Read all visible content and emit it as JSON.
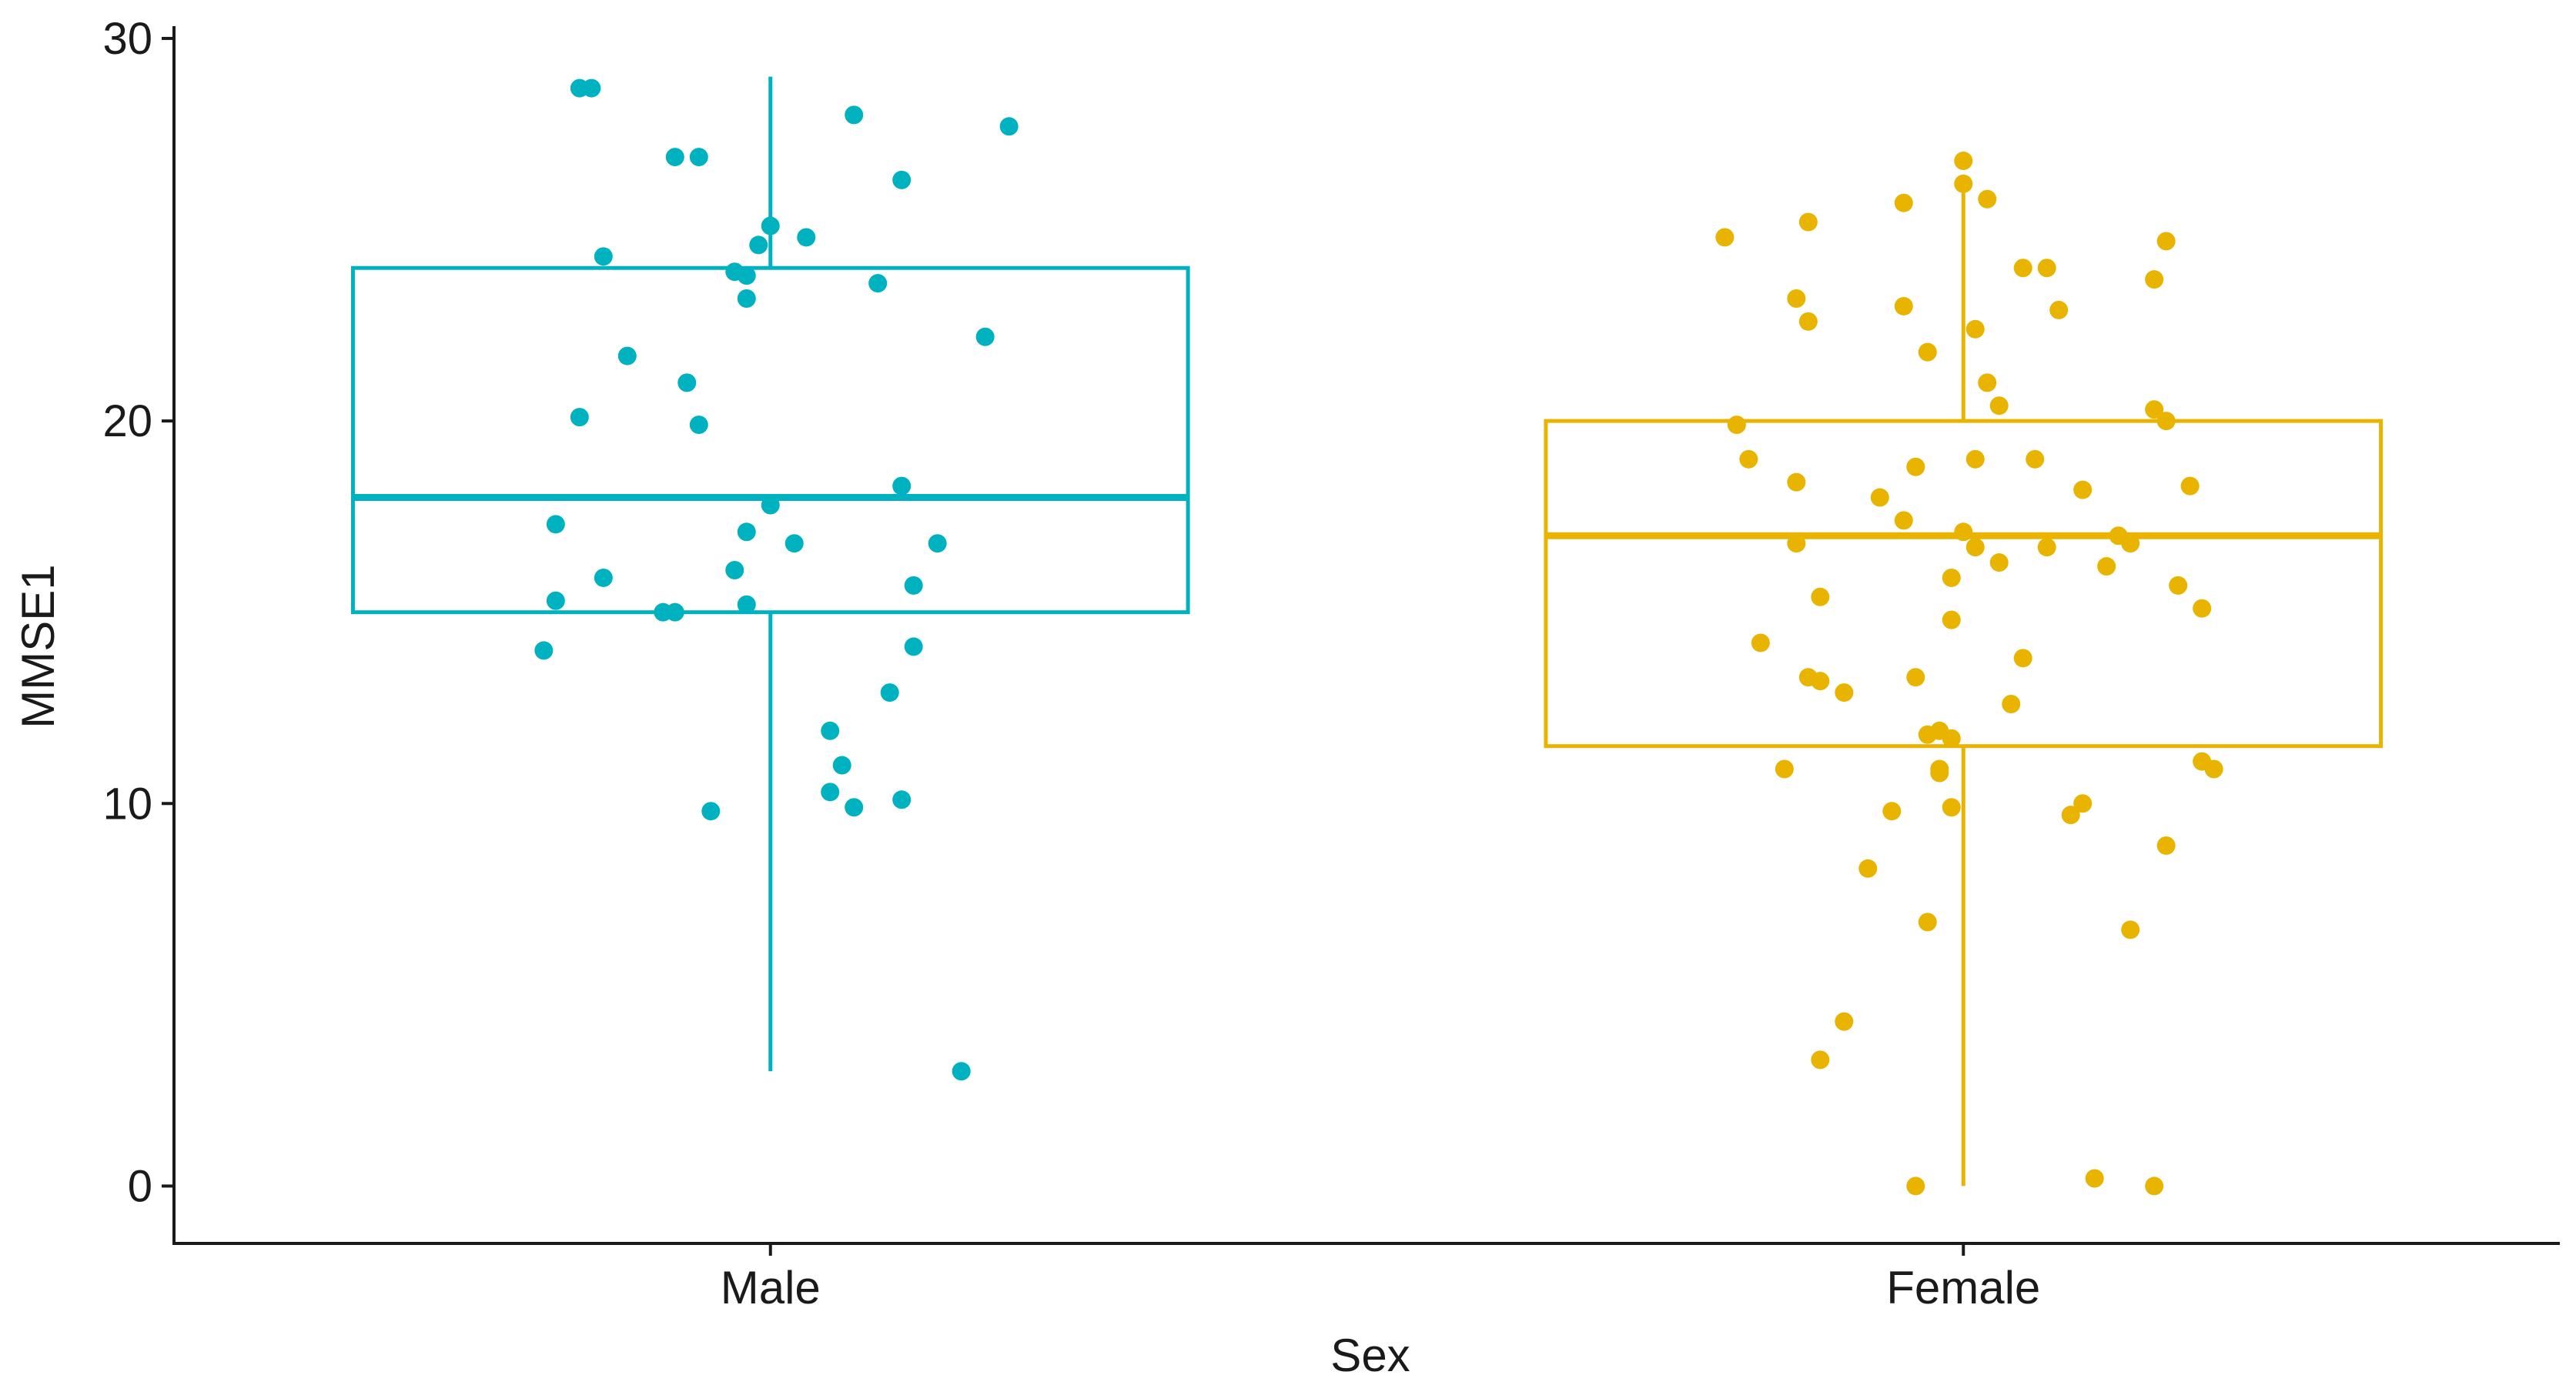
{
  "chart_data": {
    "type": "boxplot",
    "xlabel": "Sex",
    "ylabel": "MMSE1",
    "categories": [
      "Male",
      "Female"
    ],
    "ylim": [
      -1.5,
      30.2
    ],
    "yticks": [
      0,
      10,
      20,
      30
    ],
    "yticklabels": [
      "0",
      "10",
      "20",
      "30"
    ],
    "grid": false,
    "legend": "none",
    "groups": [
      {
        "category": "Male",
        "color": "#00B2C0",
        "box": {
          "lower_whisker": 3,
          "q1": 15,
          "median": 18,
          "q3": 24,
          "upper_whisker": 29
        },
        "points": [
          {
            "x": -0.16,
            "y": 28.7
          },
          {
            "x": -0.15,
            "y": 28.7
          },
          {
            "x": 0.07,
            "y": 28.0
          },
          {
            "x": 0.2,
            "y": 27.7
          },
          {
            "x": -0.08,
            "y": 26.9
          },
          {
            "x": -0.06,
            "y": 26.9
          },
          {
            "x": 0.11,
            "y": 26.3
          },
          {
            "x": 0.0,
            "y": 25.1
          },
          {
            "x": 0.03,
            "y": 24.8
          },
          {
            "x": -0.01,
            "y": 24.6
          },
          {
            "x": -0.14,
            "y": 24.3
          },
          {
            "x": -0.03,
            "y": 23.9
          },
          {
            "x": -0.02,
            "y": 23.8
          },
          {
            "x": 0.09,
            "y": 23.6
          },
          {
            "x": -0.02,
            "y": 23.2
          },
          {
            "x": 0.18,
            "y": 22.2
          },
          {
            "x": -0.12,
            "y": 21.7
          },
          {
            "x": -0.07,
            "y": 21.0
          },
          {
            "x": -0.16,
            "y": 20.1
          },
          {
            "x": -0.06,
            "y": 19.9
          },
          {
            "x": 0.11,
            "y": 18.3
          },
          {
            "x": 0.0,
            "y": 17.8
          },
          {
            "x": -0.18,
            "y": 17.3
          },
          {
            "x": -0.02,
            "y": 17.1
          },
          {
            "x": 0.02,
            "y": 16.8
          },
          {
            "x": 0.14,
            "y": 16.8
          },
          {
            "x": -0.03,
            "y": 16.1
          },
          {
            "x": -0.14,
            "y": 15.9
          },
          {
            "x": 0.12,
            "y": 15.7
          },
          {
            "x": -0.18,
            "y": 15.3
          },
          {
            "x": -0.02,
            "y": 15.2
          },
          {
            "x": -0.08,
            "y": 15.0
          },
          {
            "x": -0.09,
            "y": 15.0
          },
          {
            "x": 0.12,
            "y": 14.1
          },
          {
            "x": -0.19,
            "y": 14.0
          },
          {
            "x": 0.1,
            "y": 12.9
          },
          {
            "x": 0.05,
            "y": 11.9
          },
          {
            "x": 0.06,
            "y": 11.0
          },
          {
            "x": 0.05,
            "y": 10.3
          },
          {
            "x": 0.11,
            "y": 10.1
          },
          {
            "x": 0.07,
            "y": 9.9
          },
          {
            "x": -0.05,
            "y": 9.8
          },
          {
            "x": 0.16,
            "y": 3.0
          }
        ]
      },
      {
        "category": "Female",
        "color": "#E8B400",
        "box": {
          "lower_whisker": 0,
          "q1": 11.5,
          "median": 17,
          "q3": 20,
          "upper_whisker": 26
        },
        "points": [
          {
            "x": 0.0,
            "y": 26.8
          },
          {
            "x": 0.0,
            "y": 26.2
          },
          {
            "x": 0.02,
            "y": 25.8
          },
          {
            "x": -0.13,
            "y": 25.2
          },
          {
            "x": -0.05,
            "y": 25.7
          },
          {
            "x": -0.2,
            "y": 24.8
          },
          {
            "x": 0.17,
            "y": 24.7
          },
          {
            "x": 0.05,
            "y": 24.0
          },
          {
            "x": 0.07,
            "y": 24.0
          },
          {
            "x": 0.16,
            "y": 23.7
          },
          {
            "x": -0.14,
            "y": 23.2
          },
          {
            "x": -0.05,
            "y": 23.0
          },
          {
            "x": 0.08,
            "y": 22.9
          },
          {
            "x": -0.13,
            "y": 22.6
          },
          {
            "x": 0.01,
            "y": 22.4
          },
          {
            "x": -0.03,
            "y": 21.8
          },
          {
            "x": 0.02,
            "y": 21.0
          },
          {
            "x": 0.03,
            "y": 20.4
          },
          {
            "x": 0.16,
            "y": 20.3
          },
          {
            "x": 0.17,
            "y": 20.0
          },
          {
            "x": -0.19,
            "y": 19.9
          },
          {
            "x": -0.18,
            "y": 19.0
          },
          {
            "x": 0.01,
            "y": 19.0
          },
          {
            "x": 0.06,
            "y": 19.0
          },
          {
            "x": -0.04,
            "y": 18.8
          },
          {
            "x": -0.14,
            "y": 18.4
          },
          {
            "x": 0.19,
            "y": 18.3
          },
          {
            "x": 0.1,
            "y": 18.2
          },
          {
            "x": -0.07,
            "y": 18.0
          },
          {
            "x": -0.05,
            "y": 17.4
          },
          {
            "x": 0.0,
            "y": 17.1
          },
          {
            "x": 0.13,
            "y": 17.0
          },
          {
            "x": 0.14,
            "y": 16.8
          },
          {
            "x": -0.14,
            "y": 16.8
          },
          {
            "x": 0.01,
            "y": 16.7
          },
          {
            "x": 0.07,
            "y": 16.7
          },
          {
            "x": 0.03,
            "y": 16.3
          },
          {
            "x": 0.12,
            "y": 16.2
          },
          {
            "x": -0.01,
            "y": 15.9
          },
          {
            "x": 0.18,
            "y": 15.7
          },
          {
            "x": -0.12,
            "y": 15.4
          },
          {
            "x": 0.2,
            "y": 15.1
          },
          {
            "x": -0.01,
            "y": 14.8
          },
          {
            "x": -0.17,
            "y": 14.2
          },
          {
            "x": 0.05,
            "y": 13.8
          },
          {
            "x": -0.13,
            "y": 13.3
          },
          {
            "x": -0.12,
            "y": 13.2
          },
          {
            "x": -0.04,
            "y": 13.3
          },
          {
            "x": -0.1,
            "y": 12.9
          },
          {
            "x": 0.04,
            "y": 12.6
          },
          {
            "x": -0.02,
            "y": 11.9
          },
          {
            "x": -0.03,
            "y": 11.8
          },
          {
            "x": -0.01,
            "y": 11.7
          },
          {
            "x": 0.2,
            "y": 11.1
          },
          {
            "x": 0.21,
            "y": 10.9
          },
          {
            "x": -0.15,
            "y": 10.9
          },
          {
            "x": -0.02,
            "y": 10.9
          },
          {
            "x": -0.02,
            "y": 10.8
          },
          {
            "x": 0.1,
            "y": 10.0
          },
          {
            "x": -0.01,
            "y": 9.9
          },
          {
            "x": -0.06,
            "y": 9.8
          },
          {
            "x": 0.09,
            "y": 9.7
          },
          {
            "x": 0.17,
            "y": 8.9
          },
          {
            "x": -0.08,
            "y": 8.3
          },
          {
            "x": -0.03,
            "y": 6.9
          },
          {
            "x": 0.14,
            "y": 6.7
          },
          {
            "x": -0.1,
            "y": 4.3
          },
          {
            "x": -0.12,
            "y": 3.3
          },
          {
            "x": 0.11,
            "y": 0.2
          },
          {
            "x": -0.04,
            "y": 0.0
          },
          {
            "x": 0.16,
            "y": 0.0
          }
        ]
      }
    ]
  }
}
